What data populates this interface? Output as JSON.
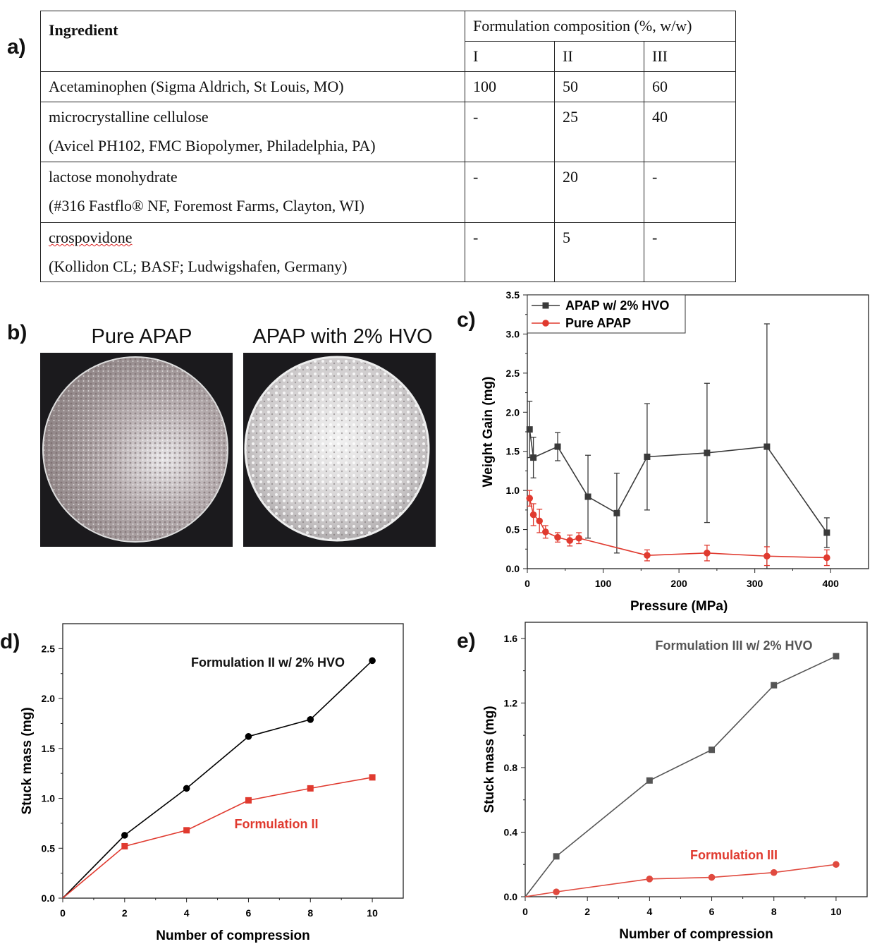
{
  "panel_labels": {
    "a": "a)",
    "b": "b)",
    "c": "c)",
    "d": "d)",
    "e": "e)"
  },
  "table": {
    "header_ingredient": "Ingredient",
    "header_composition": "Formulation composition (%, w/w)",
    "formulations": [
      "I",
      "II",
      "III"
    ],
    "rows": [
      {
        "name": "Acetaminophen (Sigma Aldrich, St Louis, MO)",
        "detail": "",
        "values": [
          "100",
          "50",
          "60"
        ]
      },
      {
        "name": "microcrystalline cellulose",
        "detail": "(Avicel PH102, FMC Biopolymer, Philadelphia, PA)",
        "values": [
          "-",
          "25",
          "40"
        ]
      },
      {
        "name": "lactose monohydrate",
        "detail": "(#316 Fastflo® NF, Foremost Farms, Clayton, WI)",
        "values": [
          "-",
          "20",
          "-"
        ]
      },
      {
        "name": "crospovidone",
        "detail": "(Kollidon CL; BASF; Ludwigshafen, Germany)",
        "values": [
          "-",
          "5",
          "-"
        ]
      }
    ]
  },
  "photos": {
    "left_title": "Pure APAP",
    "right_title": "APAP with 2% HVO"
  },
  "chart_data": [
    {
      "id": "c",
      "type": "line",
      "xlabel": "Pressure (MPa)",
      "ylabel": "Weight Gain (mg)",
      "xlim": [
        0,
        450
      ],
      "ylim": [
        0,
        3.5
      ],
      "xticks": [
        0,
        100,
        200,
        300,
        400
      ],
      "yticks": [
        0.0,
        0.5,
        1.0,
        1.5,
        2.0,
        2.5,
        3.0,
        3.5
      ],
      "legend": "top-left",
      "series": [
        {
          "name": "APAP w/ 2% HVO",
          "color": "#3a3a3a",
          "marker": "square",
          "x": [
            3,
            8,
            40,
            80,
            118,
            158,
            237,
            316,
            395
          ],
          "y": [
            1.78,
            1.42,
            1.56,
            0.92,
            0.71,
            1.43,
            1.48,
            1.56,
            0.46
          ],
          "err": [
            0.36,
            0.26,
            0.18,
            0.53,
            0.51,
            0.68,
            0.89,
            1.57,
            0.19
          ]
        },
        {
          "name": "Pure APAP",
          "color": "#e03a2f",
          "marker": "circle",
          "x": [
            3,
            8,
            16,
            24,
            40,
            56,
            68,
            158,
            237,
            316,
            395
          ],
          "y": [
            0.9,
            0.69,
            0.61,
            0.47,
            0.4,
            0.36,
            0.39,
            0.17,
            0.2,
            0.16,
            0.14
          ],
          "err": [
            0.1,
            0.14,
            0.15,
            0.08,
            0.06,
            0.07,
            0.07,
            0.07,
            0.1,
            0.12,
            0.1
          ]
        }
      ]
    },
    {
      "id": "d",
      "type": "line",
      "xlabel": "Number of compression",
      "ylabel": "Stuck mass (mg)",
      "xlim": [
        0,
        11
      ],
      "ylim": [
        0,
        2.75
      ],
      "xticks": [
        0,
        2,
        4,
        6,
        8,
        10
      ],
      "yticks": [
        0.0,
        0.5,
        1.0,
        1.5,
        2.0,
        2.5
      ],
      "series": [
        {
          "name": "Formulation II w/ 2% HVO",
          "color": "#000000",
          "marker": "circle",
          "x": [
            0,
            2,
            4,
            6,
            8,
            10
          ],
          "y": [
            0,
            0.63,
            1.1,
            1.62,
            1.79,
            2.38
          ]
        },
        {
          "name": "Formulation II",
          "color": "#e03a2f",
          "marker": "square",
          "x": [
            0,
            2,
            4,
            6,
            8,
            10
          ],
          "y": [
            0,
            0.52,
            0.68,
            0.98,
            1.1,
            1.21
          ]
        }
      ]
    },
    {
      "id": "e",
      "type": "line",
      "xlabel": "Number of compression",
      "ylabel": "Stuck mass (mg)",
      "xlim": [
        0,
        11
      ],
      "ylim": [
        0,
        1.7
      ],
      "xticks": [
        0,
        2,
        4,
        6,
        8,
        10
      ],
      "yticks": [
        0.0,
        0.4,
        0.8,
        1.2,
        1.6
      ],
      "series": [
        {
          "name": "Formulation III w/ 2% HVO",
          "color": "#555555",
          "marker": "square",
          "x": [
            0,
            1,
            4,
            6,
            8,
            10
          ],
          "y": [
            0,
            0.25,
            0.72,
            0.91,
            1.31,
            1.49
          ]
        },
        {
          "name": "Formulation III",
          "color": "#e04a3f",
          "marker": "circle",
          "x": [
            0,
            1,
            4,
            6,
            8,
            10
          ],
          "y": [
            0,
            0.03,
            0.11,
            0.12,
            0.15,
            0.2
          ]
        }
      ]
    }
  ]
}
